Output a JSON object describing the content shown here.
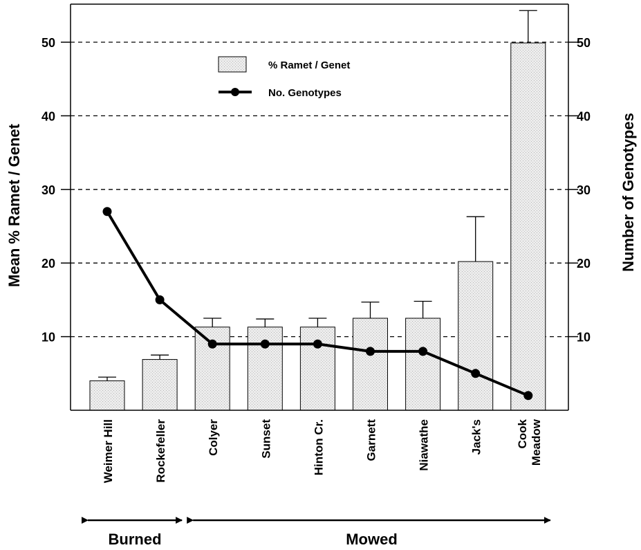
{
  "chart_data": {
    "type": "bar",
    "categories": [
      [
        "Weimer Hill"
      ],
      [
        "Rockefeller"
      ],
      [
        "Colyer"
      ],
      [
        "Sunset"
      ],
      [
        "Hinton Cr."
      ],
      [
        "Garnett"
      ],
      [
        "Niawathe"
      ],
      [
        "Jack's"
      ],
      [
        "Cook",
        "Meadow"
      ]
    ],
    "series": [
      {
        "name": "% Ramet / Genet",
        "type": "bar",
        "axis": "left",
        "values": [
          4.0,
          6.9,
          11.3,
          11.3,
          11.3,
          12.5,
          12.5,
          20.2,
          49.9
        ],
        "errors": [
          0.5,
          0.6,
          1.2,
          1.1,
          1.2,
          2.2,
          2.3,
          6.1,
          4.4
        ]
      },
      {
        "name": "No. Genotypes",
        "type": "line",
        "axis": "right",
        "values": [
          27,
          15,
          9,
          9,
          9,
          8,
          8,
          5,
          2
        ]
      }
    ],
    "ylabel": "Mean % Ramet / Genet",
    "y2label": "Number of Genotypes",
    "ylim": [
      0,
      55
    ],
    "y2lim": [
      0,
      55
    ],
    "yticks": [
      10,
      20,
      30,
      40,
      50
    ],
    "y2ticks": [
      10,
      20,
      30,
      40,
      50
    ],
    "grid": "dashed horizontal at tick values",
    "legend": "top-center",
    "groups": [
      {
        "label": "Burned",
        "start": 0,
        "end": 1
      },
      {
        "label": "Mowed",
        "start": 2,
        "end": 8
      }
    ]
  },
  "colors": {
    "bar_fill": "#e6e6e6",
    "line": "#000000",
    "axis": "#000000",
    "grid": "#000000"
  }
}
